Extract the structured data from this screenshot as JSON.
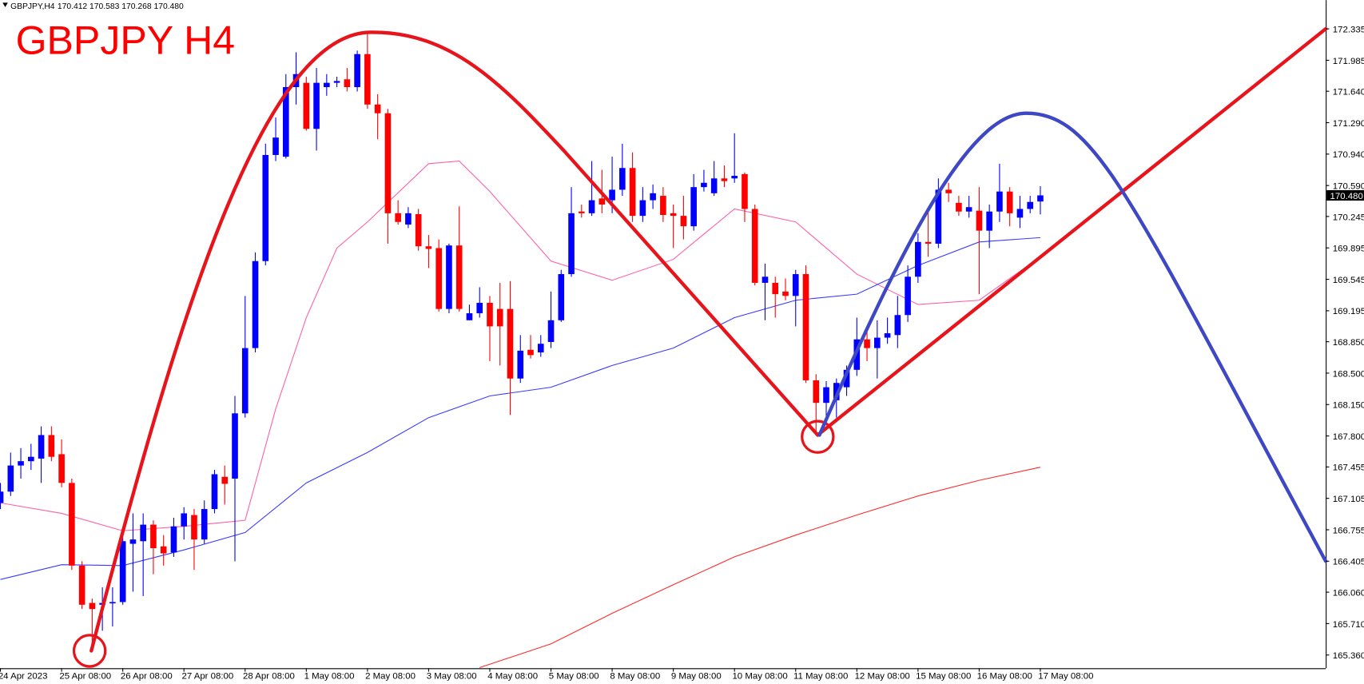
{
  "header": {
    "symbol": "GBPJPY,H4",
    "quote": "170.412 170.583 170.268 170.480"
  },
  "chart_data": {
    "type": "candlestick",
    "title": "GBPJPY H4",
    "title_color": "#ff0000",
    "up_color": "#0000ff",
    "down_color": "#ff0000",
    "ohlc": [
      [
        167.054,
        167.277,
        166.986,
        167.18
      ],
      [
        167.18,
        167.616,
        167.132,
        167.471
      ],
      [
        167.471,
        167.665,
        167.325,
        167.519
      ],
      [
        167.519,
        167.713,
        167.422,
        167.568
      ],
      [
        167.548,
        167.907,
        167.277,
        167.81
      ],
      [
        167.81,
        167.907,
        167.519,
        167.568
      ],
      [
        167.597,
        167.762,
        167.229,
        167.277
      ],
      [
        167.277,
        167.325,
        166.308,
        166.356
      ],
      [
        166.356,
        166.405,
        165.872,
        165.92
      ],
      [
        165.94,
        165.988,
        165.484,
        165.872
      ],
      [
        165.92,
        166.114,
        165.63,
        165.94
      ],
      [
        165.94,
        166.114,
        165.678,
        165.95
      ],
      [
        165.95,
        166.696,
        165.92,
        166.628
      ],
      [
        166.599,
        166.938,
        166.066,
        166.647
      ],
      [
        166.628,
        166.938,
        166.017,
        166.812
      ],
      [
        166.812,
        166.86,
        166.26,
        166.55
      ],
      [
        166.57,
        166.696,
        166.356,
        166.492
      ],
      [
        166.502,
        166.889,
        166.453,
        166.793
      ],
      [
        166.793,
        167.006,
        166.647,
        166.938
      ],
      [
        166.919,
        166.986,
        166.308,
        166.647
      ],
      [
        166.647,
        167.083,
        166.599,
        166.986
      ],
      [
        166.986,
        167.422,
        166.938,
        167.374
      ],
      [
        167.345,
        167.471,
        167.035,
        167.267
      ],
      [
        167.325,
        168.246,
        166.405,
        168.052
      ],
      [
        168.052,
        169.36,
        168.004,
        168.779
      ],
      [
        168.779,
        169.845,
        168.731,
        169.748
      ],
      [
        169.748,
        171.056,
        169.7,
        170.93
      ],
      [
        170.93,
        171.347,
        170.862,
        171.124
      ],
      [
        170.911,
        171.831,
        170.891,
        171.686
      ],
      [
        171.686,
        172.074,
        171.492,
        171.831
      ],
      [
        171.734,
        171.802,
        171.201,
        171.221
      ],
      [
        171.221,
        171.899,
        170.979,
        171.734
      ],
      [
        171.686,
        171.831,
        171.589,
        171.734
      ],
      [
        171.734,
        171.802,
        171.686,
        171.754
      ],
      [
        171.773,
        171.899,
        171.638,
        171.686
      ],
      [
        171.686,
        172.093,
        171.638,
        172.054
      ],
      [
        172.054,
        172.287,
        171.444,
        171.492
      ],
      [
        171.492,
        171.608,
        171.105,
        171.395
      ],
      [
        171.395,
        171.444,
        169.942,
        170.281
      ],
      [
        170.281,
        170.426,
        170.155,
        170.184
      ],
      [
        170.155,
        170.349,
        170.116,
        170.281
      ],
      [
        170.271,
        170.329,
        169.864,
        169.913
      ],
      [
        169.913,
        170.039,
        169.67,
        169.884
      ],
      [
        169.893,
        169.99,
        169.186,
        169.215
      ],
      [
        169.215,
        169.942,
        169.167,
        169.922
      ],
      [
        169.922,
        170.358,
        169.186,
        169.215
      ],
      [
        169.089,
        169.263,
        169.089,
        169.167
      ],
      [
        169.167,
        169.457,
        169.118,
        169.283
      ],
      [
        169.283,
        169.36,
        168.634,
        169.021
      ],
      [
        169.215,
        169.506,
        168.585,
        169.021
      ],
      [
        169.215,
        169.525,
        168.033,
        168.44
      ],
      [
        168.44,
        168.924,
        168.391,
        168.75
      ],
      [
        168.76,
        168.924,
        168.663,
        168.701
      ],
      [
        168.731,
        168.924,
        168.682,
        168.827
      ],
      [
        168.847,
        169.409,
        168.779,
        169.089
      ],
      [
        169.089,
        169.651,
        169.07,
        169.603
      ],
      [
        169.603,
        170.572,
        169.574,
        170.281
      ],
      [
        170.3,
        170.378,
        170.232,
        170.281
      ],
      [
        170.281,
        170.862,
        170.252,
        170.426
      ],
      [
        170.446,
        170.765,
        170.281,
        170.378
      ],
      [
        170.426,
        170.911,
        170.281,
        170.543
      ],
      [
        170.543,
        171.056,
        170.475,
        170.785
      ],
      [
        170.785,
        170.959,
        170.184,
        170.252
      ],
      [
        170.252,
        170.572,
        170.184,
        170.426
      ],
      [
        170.426,
        170.601,
        170.329,
        170.504
      ],
      [
        170.475,
        170.572,
        170.184,
        170.262
      ],
      [
        170.281,
        170.378,
        169.893,
        170.252
      ],
      [
        170.252,
        170.475,
        169.99,
        170.136
      ],
      [
        170.136,
        170.717,
        170.087,
        170.572
      ],
      [
        170.572,
        170.765,
        170.523,
        170.62
      ],
      [
        170.504,
        170.862,
        170.475,
        170.669
      ],
      [
        170.669,
        170.814,
        170.572,
        170.639
      ],
      [
        170.669,
        171.172,
        170.62,
        170.698
      ],
      [
        170.717,
        170.736,
        170.184,
        170.329
      ],
      [
        170.329,
        170.378,
        169.477,
        169.506
      ],
      [
        169.506,
        169.719,
        169.089,
        169.574
      ],
      [
        169.506,
        169.574,
        169.118,
        169.38
      ],
      [
        169.409,
        169.554,
        169.312,
        169.36
      ],
      [
        169.36,
        169.651,
        169.021,
        169.603
      ],
      [
        169.603,
        169.7,
        168.391,
        168.42
      ],
      [
        168.42,
        168.488,
        167.81,
        168.169
      ],
      [
        168.169,
        168.411,
        167.955,
        168.343
      ],
      [
        168.198,
        168.44,
        168.004,
        168.391
      ],
      [
        168.343,
        168.585,
        168.246,
        168.537
      ],
      [
        168.537,
        169.118,
        168.469,
        168.876
      ],
      [
        168.876,
        168.973,
        168.634,
        168.779
      ],
      [
        168.779,
        169.089,
        168.44,
        168.895
      ],
      [
        168.895,
        169.118,
        168.827,
        168.944
      ],
      [
        168.924,
        169.36,
        168.779,
        169.147
      ],
      [
        169.147,
        169.7,
        169.07,
        169.574
      ],
      [
        169.574,
        170.058,
        169.506,
        169.961
      ],
      [
        169.961,
        170.329,
        169.796,
        169.942
      ],
      [
        169.942,
        170.669,
        169.893,
        170.543
      ],
      [
        170.543,
        170.62,
        170.407,
        170.504
      ],
      [
        170.397,
        170.475,
        170.252,
        170.3
      ],
      [
        170.3,
        170.475,
        170.232,
        170.349
      ],
      [
        170.31,
        170.572,
        169.38,
        170.087
      ],
      [
        170.087,
        170.378,
        169.893,
        170.3
      ],
      [
        170.3,
        170.833,
        170.184,
        170.523
      ],
      [
        170.523,
        170.572,
        170.136,
        170.281
      ],
      [
        170.232,
        170.475,
        170.116,
        170.329
      ],
      [
        170.329,
        170.475,
        170.281,
        170.407
      ],
      [
        170.412,
        170.583,
        170.268,
        170.48
      ]
    ],
    "moving_averages": [
      {
        "color": "#ff5fa8",
        "x": [
          0,
          6,
          12,
          18,
          24,
          27,
          30,
          33,
          36,
          42,
          45,
          48,
          54,
          60,
          66,
          72,
          78,
          84,
          90,
          96,
          102
        ],
        "values": [
          167.054,
          166.938,
          166.744,
          166.793,
          166.86,
          168.101,
          169.118,
          169.893,
          170.184,
          170.833,
          170.862,
          170.523,
          169.748,
          169.535,
          169.767,
          170.329,
          170.184,
          169.603,
          169.264,
          169.312,
          169.796
        ]
      },
      {
        "color": "#3a3aff",
        "x": [
          0,
          6,
          12,
          18,
          24,
          30,
          36,
          42,
          48,
          54,
          60,
          66,
          72,
          78,
          84,
          90,
          96,
          102
        ],
        "values": [
          166.201,
          166.366,
          166.356,
          166.531,
          166.725,
          167.277,
          167.616,
          168.004,
          168.246,
          168.343,
          168.585,
          168.779,
          169.118,
          169.312,
          169.38,
          169.7,
          169.961,
          170.01
        ]
      },
      {
        "color": "#ff2a2a",
        "x": [
          47,
          54,
          60,
          66,
          72,
          78,
          84,
          90,
          96,
          102
        ],
        "values": [
          165.22,
          165.484,
          165.824,
          166.143,
          166.453,
          166.696,
          166.919,
          167.132,
          167.306,
          167.452
        ]
      }
    ],
    "xticks": [
      {
        "value": 0,
        "label": "24 Apr 2023"
      },
      {
        "value": 6,
        "label": "25 Apr 08:00"
      },
      {
        "value": 12,
        "label": "26 Apr 08:00"
      },
      {
        "value": 18,
        "label": "27 Apr 08:00"
      },
      {
        "value": 24,
        "label": "28 Apr 08:00"
      },
      {
        "value": 30,
        "label": "1 May 08:00"
      },
      {
        "value": 36,
        "label": "2 May 08:00"
      },
      {
        "value": 42,
        "label": "3 May 08:00"
      },
      {
        "value": 48,
        "label": "4 May 08:00"
      },
      {
        "value": 54,
        "label": "5 May 08:00"
      },
      {
        "value": 60,
        "label": "8 May 08:00"
      },
      {
        "value": 66,
        "label": "9 May 08:00"
      },
      {
        "value": 72,
        "label": "10 May 08:00"
      },
      {
        "value": 78,
        "label": "11 May 08:00"
      },
      {
        "value": 84,
        "label": "12 May 08:00"
      },
      {
        "value": 90,
        "label": "15 May 08:00"
      },
      {
        "value": 96,
        "label": "16 May 08:00"
      },
      {
        "value": 102,
        "label": "17 May 08:00"
      }
    ],
    "ylim": [
      165.213,
      172.655
    ],
    "yticks": [
      172.335,
      171.985,
      {
        "value": 171.64,
        "label": "171.640"
      },
      {
        "value": 171.29,
        "label": "171.290"
      },
      {
        "value": 170.94,
        "label": "170.940"
      },
      {
        "value": 170.59,
        "label": "170.590"
      },
      170.245,
      169.895,
      169.545,
      169.195,
      {
        "value": 168.85,
        "label": "168.850"
      },
      {
        "value": 168.5,
        "label": "168.500"
      },
      {
        "value": 168.15,
        "label": "168.150"
      },
      {
        "value": 167.8,
        "label": "167.800"
      },
      167.455,
      167.105,
      166.755,
      166.405,
      {
        "value": 166.06,
        "label": "166.060"
      },
      {
        "value": 165.71,
        "label": "165.710"
      },
      {
        "value": 165.36,
        "label": "165.360"
      }
    ],
    "last_price_label": "170.480"
  }
}
